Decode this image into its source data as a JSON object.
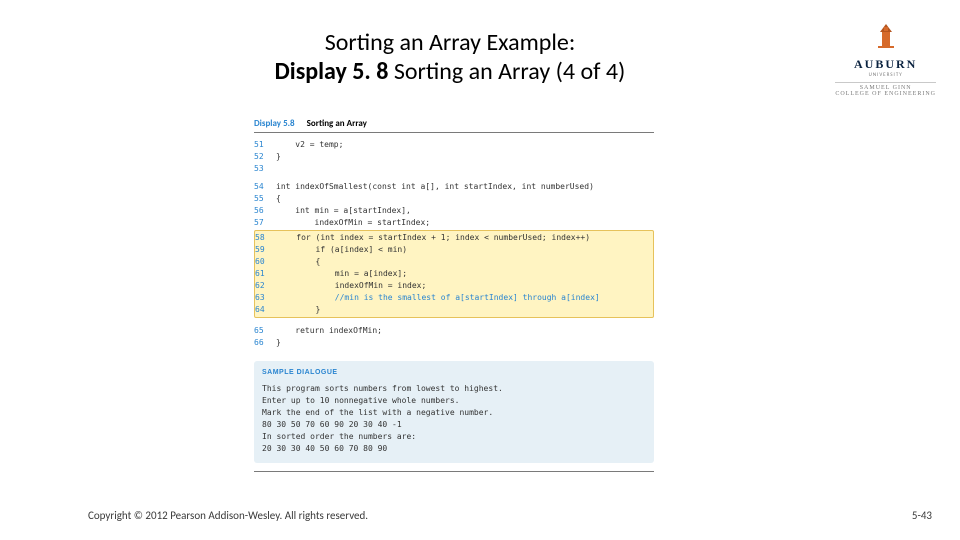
{
  "title": {
    "line1": "Sorting an Array Example:",
    "line2_bold": "Display 5. 8",
    "line2_rest": "  Sorting an Array (4 of 4)"
  },
  "logo": {
    "name": "AUBURN",
    "under": "UNIVERSITY",
    "sub1": "SAMUEL GINN",
    "sub2": "COLLEGE OF ENGINEERING",
    "tower_fill": "#d66a2b",
    "tower_roof": "#b5551e",
    "name_color": "#0b2340"
  },
  "code_header": {
    "display_label": "Display 5.8",
    "display_title": "Sorting an Array"
  },
  "code_pre": [
    {
      "n": "51",
      "t": "    v2 = temp;"
    },
    {
      "n": "52",
      "t": "}"
    },
    {
      "n": "53",
      "t": ""
    }
  ],
  "code_mid1": [
    {
      "n": "54",
      "t": "int indexOfSmallest(const int a[], int startIndex, int numberUsed)"
    },
    {
      "n": "55",
      "t": "{"
    },
    {
      "n": "56",
      "t": "    int min = a[startIndex],"
    },
    {
      "n": "57",
      "t": "        indexOfMin = startIndex;"
    }
  ],
  "code_hl": [
    {
      "n": "58",
      "t": "    for (int index = startIndex + 1; index < numberUsed; index++)"
    },
    {
      "n": "59",
      "t": "        if (a[index] < min)"
    },
    {
      "n": "60",
      "t": "        {"
    },
    {
      "n": "61",
      "t": "            min = a[index];"
    },
    {
      "n": "62",
      "t": "            indexOfMin = index;"
    },
    {
      "n": "63",
      "t": "            //min is the smallest of a[startIndex] through a[index]",
      "c": true
    },
    {
      "n": "64",
      "t": "        }"
    }
  ],
  "code_mid2": [
    {
      "n": "65",
      "t": "    return indexOfMin;"
    },
    {
      "n": "66",
      "t": "}"
    }
  ],
  "dialog": {
    "title": "Sample Dialogue",
    "lines": [
      "This program sorts numbers from lowest to highest.",
      "Enter up to 10 nonnegative whole numbers.",
      "Mark the end of the list with a negative number.",
      "80 30 50 70 60 90 20 30 40 -1",
      "In sorted order the numbers are:",
      "20 30 30 40 50 60 70 80 90"
    ]
  },
  "footer": {
    "copyright": "Copyright © 2012 Pearson Addison-Wesley. All rights reserved.",
    "page": "5-43"
  },
  "style": {
    "highlight_bg": "#fff4c2",
    "highlight_border": "#e6c25b",
    "dialog_bg": "#e6f0f6",
    "accent": "#2a85d0",
    "mono_font": "Lucida Console"
  }
}
